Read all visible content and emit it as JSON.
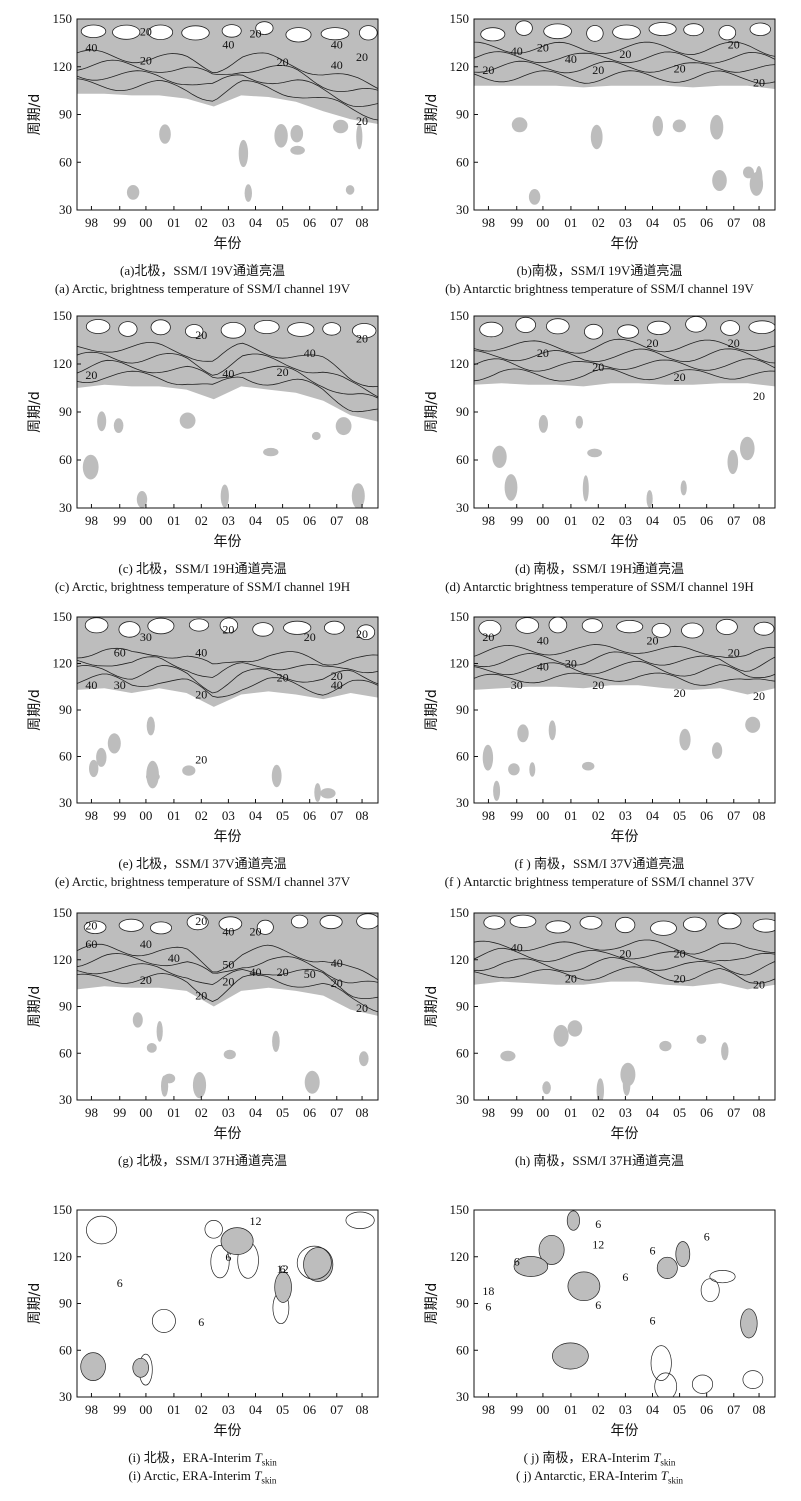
{
  "figure": {
    "y_axis_label": "周期/d",
    "x_axis_label": "年份",
    "y_ticks": [
      30,
      60,
      90,
      120,
      150
    ],
    "x_ticks": [
      "98",
      "99",
      "00",
      "01",
      "02",
      "03",
      "04",
      "05",
      "06",
      "07",
      "08"
    ],
    "shading_color": "#bdbdbd",
    "line_color": "#222222"
  },
  "chart_data": [
    {
      "id": "a",
      "type": "heatmap",
      "caption_cn": "(a)北极，SSM/I 19V通道亮温",
      "caption_en": "(a)  Arctic, brightness temperature of SSM/I channel 19V",
      "xlabel": "年份",
      "ylabel": "周期/d",
      "ylim": [
        30,
        150
      ],
      "band_base": [
        103,
        103,
        102,
        102,
        100,
        95,
        102,
        101,
        98,
        92,
        87,
        84
      ],
      "contour_labels": [
        {
          "text": "40",
          "x": "98",
          "y": 132
        },
        {
          "text": "20",
          "x": "00",
          "y": 142
        },
        {
          "text": "20",
          "x": "00",
          "y": 124
        },
        {
          "text": "40",
          "x": "03",
          "y": 134
        },
        {
          "text": "20",
          "x": "04",
          "y": 141
        },
        {
          "text": "20",
          "x": "05",
          "y": 123
        },
        {
          "text": "40",
          "x": "07",
          "y": 121
        },
        {
          "text": "40",
          "x": "07",
          "y": 134
        },
        {
          "text": "20",
          "x": "08",
          "y": 126
        },
        {
          "text": "20",
          "x": "08",
          "y": 86
        }
      ]
    },
    {
      "id": "b",
      "type": "heatmap",
      "caption_cn": "(b)南极，SSM/I  19V通道亮温",
      "caption_en": "(b)  Antarctic brightness temperature of SSM/I channel 19V",
      "xlabel": "年份",
      "ylabel": "周期/d",
      "ylim": [
        30,
        150
      ],
      "band_base": [
        108,
        108,
        108,
        108,
        107,
        108,
        108,
        108,
        107,
        108,
        108,
        106
      ],
      "contour_labels": [
        {
          "text": "40",
          "x": "99",
          "y": 130
        },
        {
          "text": "20",
          "x": "98",
          "y": 118
        },
        {
          "text": "20",
          "x": "00",
          "y": 132
        },
        {
          "text": "40",
          "x": "01",
          "y": 125
        },
        {
          "text": "20",
          "x": "02",
          "y": 118
        },
        {
          "text": "20",
          "x": "03",
          "y": 128
        },
        {
          "text": "20",
          "x": "05",
          "y": 119
        },
        {
          "text": "20",
          "x": "07",
          "y": 134
        },
        {
          "text": "20",
          "x": "08",
          "y": 110
        }
      ]
    },
    {
      "id": "c",
      "type": "heatmap",
      "caption_cn": "(c) 北极，SSM/I 19H通道亮温",
      "caption_en": "(c) Arctic, brightness temperature of SSM/I channel 19H",
      "xlabel": "年份",
      "ylabel": "周期/d",
      "ylim": [
        30,
        150
      ],
      "band_base": [
        105,
        107,
        106,
        106,
        104,
        98,
        106,
        104,
        102,
        97,
        88,
        84
      ],
      "contour_labels": [
        {
          "text": "20",
          "x": "02",
          "y": 138
        },
        {
          "text": "20",
          "x": "98",
          "y": 113
        },
        {
          "text": "40",
          "x": "03",
          "y": 114
        },
        {
          "text": "20",
          "x": "05",
          "y": 115
        },
        {
          "text": "40",
          "x": "06",
          "y": 127
        },
        {
          "text": "20",
          "x": "08",
          "y": 136
        }
      ]
    },
    {
      "id": "d",
      "type": "heatmap",
      "caption_cn": "(d) 南极，SSM/I  19H通道亮温",
      "caption_en": "(d) Antarctic brightness temperature of SSM/I channel 19H",
      "xlabel": "年份",
      "ylabel": "周期/d",
      "ylim": [
        30,
        150
      ],
      "band_base": [
        107,
        108,
        107,
        107,
        106,
        108,
        108,
        107,
        107,
        108,
        108,
        106
      ],
      "contour_labels": [
        {
          "text": "20",
          "x": "00",
          "y": 127
        },
        {
          "text": "20",
          "x": "02",
          "y": 118
        },
        {
          "text": "20",
          "x": "04",
          "y": 133
        },
        {
          "text": "20",
          "x": "05",
          "y": 112
        },
        {
          "text": "20",
          "x": "07",
          "y": 133
        },
        {
          "text": "20",
          "x": "08",
          "y": 100
        }
      ]
    },
    {
      "id": "e",
      "type": "heatmap",
      "caption_cn": "(e) 北极，SSM/I 37V通道亮温",
      "caption_en": "(e) Arctic, brightness temperature of SSM/I channel 37V",
      "xlabel": "年份",
      "ylabel": "周期/d",
      "ylim": [
        30,
        150
      ],
      "band_base": [
        103,
        104,
        101,
        104,
        101,
        92,
        100,
        102,
        100,
        97,
        101,
        98
      ],
      "contour_labels": [
        {
          "text": "30",
          "x": "00",
          "y": 137
        },
        {
          "text": "20",
          "x": "03",
          "y": 142
        },
        {
          "text": "60",
          "x": "99",
          "y": 127
        },
        {
          "text": "40",
          "x": "02",
          "y": 127
        },
        {
          "text": "40",
          "x": "98",
          "y": 106
        },
        {
          "text": "30",
          "x": "99",
          "y": 106
        },
        {
          "text": "20",
          "x": "02",
          "y": 100
        },
        {
          "text": "20",
          "x": "05",
          "y": 111
        },
        {
          "text": "20",
          "x": "06",
          "y": 137
        },
        {
          "text": "40",
          "x": "07",
          "y": 106
        },
        {
          "text": "20",
          "x": "07",
          "y": 112
        },
        {
          "text": "20",
          "x": "08",
          "y": 139
        },
        {
          "text": "20",
          "x": "02",
          "y": 58
        }
      ]
    },
    {
      "id": "f",
      "type": "heatmap",
      "caption_cn": "(f ) 南极，SSM/I 37V通道亮温",
      "caption_en": "(f ) Antarctic brightness temperature of SSM/I channel 37V",
      "xlabel": "年份",
      "ylabel": "周期/d",
      "ylim": [
        30,
        150
      ],
      "band_base": [
        103,
        104,
        105,
        105,
        104,
        106,
        106,
        104,
        103,
        104,
        100,
        104
      ],
      "contour_labels": [
        {
          "text": "20",
          "x": "98",
          "y": 137
        },
        {
          "text": "40",
          "x": "00",
          "y": 135
        },
        {
          "text": "40",
          "x": "00",
          "y": 118
        },
        {
          "text": "30",
          "x": "99",
          "y": 106
        },
        {
          "text": "30",
          "x": "01",
          "y": 120
        },
        {
          "text": "20",
          "x": "02",
          "y": 106
        },
        {
          "text": "20",
          "x": "04",
          "y": 135
        },
        {
          "text": "20",
          "x": "07",
          "y": 127
        },
        {
          "text": "20",
          "x": "05",
          "y": 101
        },
        {
          "text": "20",
          "x": "08",
          "y": 99
        }
      ]
    },
    {
      "id": "g",
      "type": "heatmap",
      "caption_cn": "(g) 北极，SSM/I 37H通道亮温",
      "caption_en": "",
      "xlabel": "年份",
      "ylabel": "周期/d",
      "ylim": [
        30,
        150
      ],
      "band_base": [
        101,
        103,
        102,
        102,
        100,
        90,
        100,
        102,
        100,
        97,
        88,
        84
      ],
      "contour_labels": [
        {
          "text": "20",
          "x": "98",
          "y": 142
        },
        {
          "text": "60",
          "x": "98",
          "y": 130
        },
        {
          "text": "40",
          "x": "00",
          "y": 130
        },
        {
          "text": "20",
          "x": "02",
          "y": 145
        },
        {
          "text": "40",
          "x": "03",
          "y": 138
        },
        {
          "text": "20",
          "x": "04",
          "y": 138
        },
        {
          "text": "40",
          "x": "01",
          "y": 121
        },
        {
          "text": "50",
          "x": "03",
          "y": 117
        },
        {
          "text": "20",
          "x": "00",
          "y": 107
        },
        {
          "text": "20",
          "x": "03",
          "y": 106
        },
        {
          "text": "40",
          "x": "04",
          "y": 112
        },
        {
          "text": "20",
          "x": "05",
          "y": 112
        },
        {
          "text": "50",
          "x": "06",
          "y": 111
        },
        {
          "text": "40",
          "x": "07",
          "y": 118
        },
        {
          "text": "20",
          "x": "02",
          "y": 97
        },
        {
          "text": "20",
          "x": "07",
          "y": 105
        },
        {
          "text": "20",
          "x": "08",
          "y": 89
        }
      ]
    },
    {
      "id": "h",
      "type": "heatmap",
      "caption_cn": "(h) 南极，SSM/I 37H通道亮温",
      "caption_en": "",
      "xlabel": "年份",
      "ylabel": "周期/d",
      "ylim": [
        30,
        150
      ],
      "band_base": [
        104,
        106,
        105,
        104,
        104,
        106,
        106,
        104,
        103,
        105,
        101,
        104
      ],
      "contour_labels": [
        {
          "text": "40",
          "x": "99",
          "y": 128
        },
        {
          "text": "20",
          "x": "03",
          "y": 124
        },
        {
          "text": "20",
          "x": "05",
          "y": 124
        },
        {
          "text": "20",
          "x": "01",
          "y": 108
        },
        {
          "text": "20",
          "x": "05",
          "y": 108
        },
        {
          "text": "20",
          "x": "08",
          "y": 104
        }
      ]
    },
    {
      "id": "i",
      "type": "heatmap",
      "caption_cn": "(i)  北极，ERA-Interim ",
      "caption_en": "(i)  Arctic, ERA-Interim ",
      "caption_var": "T",
      "caption_sub": "skin",
      "xlabel": "年份",
      "ylabel": "周期/d",
      "ylim": [
        30,
        150
      ],
      "contour_labels": [
        {
          "text": "12",
          "x": "04",
          "y": 143
        },
        {
          "text": "6",
          "x": "03",
          "y": 120
        },
        {
          "text": "6",
          "x": "99",
          "y": 103
        },
        {
          "text": "12",
          "x": "05",
          "y": 112
        },
        {
          "text": "6",
          "x": "05",
          "y": 112
        },
        {
          "text": "6",
          "x": "02",
          "y": 78
        }
      ]
    },
    {
      "id": "j",
      "type": "heatmap",
      "caption_cn": "( j)  南极，ERA-Interim ",
      "caption_en": "( j)    Antarctic, ERA-Interim ",
      "caption_var": "T",
      "caption_sub": "skin",
      "xlabel": "年份",
      "ylabel": "周期/d",
      "ylim": [
        30,
        150
      ],
      "contour_labels": [
        {
          "text": "6",
          "x": "99",
          "y": 117
        },
        {
          "text": "18",
          "x": "98",
          "y": 98
        },
        {
          "text": "6",
          "x": "98",
          "y": 88
        },
        {
          "text": "6",
          "x": "02",
          "y": 141
        },
        {
          "text": "12",
          "x": "02",
          "y": 128
        },
        {
          "text": "6",
          "x": "04",
          "y": 124
        },
        {
          "text": "6",
          "x": "03",
          "y": 107
        },
        {
          "text": "6",
          "x": "02",
          "y": 89
        },
        {
          "text": "6",
          "x": "04",
          "y": 79
        },
        {
          "text": "6",
          "x": "06",
          "y": 133
        }
      ]
    }
  ]
}
